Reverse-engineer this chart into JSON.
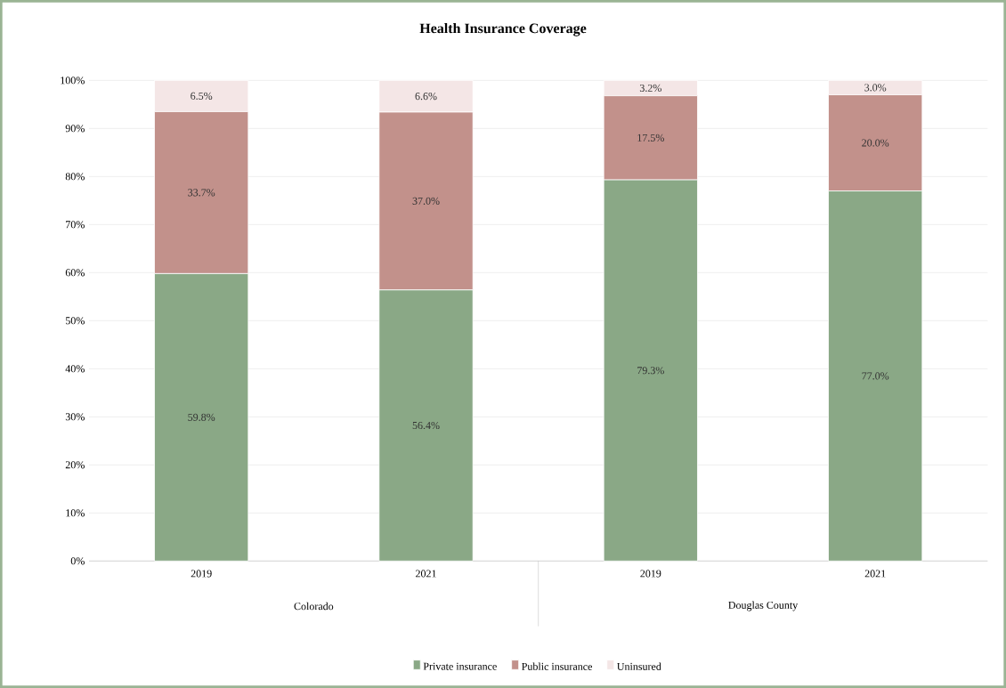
{
  "chart_data": {
    "type": "bar",
    "title": "Health Insurance Coverage",
    "categories": [
      "2019",
      "2021",
      "2019",
      "2021"
    ],
    "stacked": true,
    "series": [
      {
        "name": "Private insurance",
        "color": "#8aa886",
        "values": [
          59.8,
          56.4,
          79.3,
          77.0
        ],
        "value_labels": [
          "59.8%",
          "56.4%",
          "79.3%",
          "77.0%"
        ]
      },
      {
        "name": "Public insurance",
        "color": "#c2918b",
        "values": [
          33.7,
          37.0,
          17.5,
          20.0
        ],
        "value_labels": [
          "33.7%",
          "37.0%",
          "17.5%",
          "20.0%"
        ]
      },
      {
        "name": "Uninsured",
        "color": "#f4e6e6",
        "values": [
          6.5,
          6.6,
          3.2,
          3.0
        ],
        "value_labels": [
          "6.5%",
          "6.6%",
          "3.2%",
          "3.0%"
        ]
      }
    ],
    "ylim": [
      0,
      100
    ],
    "yticks": [
      {
        "value": 0,
        "label": "0%"
      },
      {
        "value": 10,
        "label": "10%"
      },
      {
        "value": 20,
        "label": "20%"
      },
      {
        "value": 30,
        "label": "30%"
      },
      {
        "value": 40,
        "label": "40%"
      },
      {
        "value": 50,
        "label": "50%"
      },
      {
        "value": 60,
        "label": "60%"
      },
      {
        "value": 70,
        "label": "70%"
      },
      {
        "value": 80,
        "label": "80%"
      },
      {
        "value": 90,
        "label": "90%"
      },
      {
        "value": 100,
        "label": "100%"
      }
    ],
    "grid": "y",
    "legend": "bottom",
    "annotations": [
      "Colorado",
      "Douglas County"
    ]
  }
}
